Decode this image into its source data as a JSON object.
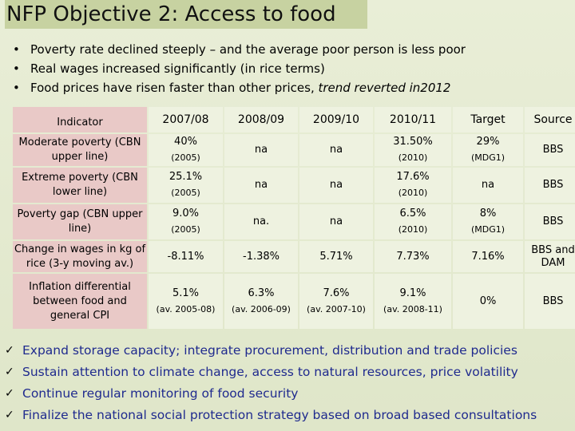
{
  "title": "NFP Objective 2: Access to food",
  "bullets": [
    {
      "text": "Poverty rate declined steeply – and the average poor person is less poor"
    },
    {
      "text": "Real wages increased significantly (in rice terms)"
    },
    {
      "text": "Food prices have risen faster than other prices, ",
      "italic": "trend reverted in2012"
    }
  ],
  "table": {
    "headers": [
      "Indicator",
      "2007/08",
      "2008/09",
      "2009/10",
      "2010/11",
      "Target",
      "Source"
    ],
    "rows": [
      {
        "indicator": "Moderate poverty (CBN upper line)",
        "cells": [
          {
            "main": "40%",
            "sub": "(2005)"
          },
          {
            "main": "na",
            "sub": ""
          },
          {
            "main": "na",
            "sub": ""
          },
          {
            "main": "31.50%",
            "sub": "(2010)"
          },
          {
            "main": "29%",
            "sub": "(MDG1)"
          },
          {
            "main": "BBS",
            "sub": ""
          }
        ]
      },
      {
        "indicator": "Extreme poverty (CBN lower line)",
        "cells": [
          {
            "main": "25.1%",
            "sub": "(2005)"
          },
          {
            "main": "na",
            "sub": ""
          },
          {
            "main": "na",
            "sub": ""
          },
          {
            "main": "17.6%",
            "sub": "(2010)"
          },
          {
            "main": "na",
            "sub": ""
          },
          {
            "main": "BBS",
            "sub": ""
          }
        ]
      },
      {
        "indicator": "Poverty gap (CBN upper line)",
        "cells": [
          {
            "main": "9.0%",
            "sub": "(2005)"
          },
          {
            "main": "na.",
            "sub": ""
          },
          {
            "main": "na",
            "sub": ""
          },
          {
            "main": "6.5%",
            "sub": "(2010)"
          },
          {
            "main": "8%",
            "sub": "(MDG1)"
          },
          {
            "main": "BBS",
            "sub": ""
          }
        ]
      },
      {
        "indicator": "Change in wages in kg of rice (3-y moving av.)",
        "cells": [
          {
            "main": "-8.11%",
            "sub": ""
          },
          {
            "main": "-1.38%",
            "sub": ""
          },
          {
            "main": "5.71%",
            "sub": ""
          },
          {
            "main": "7.73%",
            "sub": ""
          },
          {
            "main": "7.16%",
            "sub": ""
          },
          {
            "main": "BBS and DAM",
            "sub": ""
          }
        ]
      },
      {
        "indicator": "Inflation differential between food and general CPI",
        "cells": [
          {
            "main": "5.1%",
            "sub": "(av. 2005-08)"
          },
          {
            "main": "6.3%",
            "sub": "(av. 2006-09)"
          },
          {
            "main": "7.6%",
            "sub": "(av. 2007-10)"
          },
          {
            "main": "9.1%",
            "sub": "(av. 2008-11)"
          },
          {
            "main": "0%",
            "sub": ""
          },
          {
            "main": "BBS",
            "sub": ""
          }
        ]
      }
    ]
  },
  "checks": [
    "Expand storage capacity; integrate procurement, distribution and trade policies",
    "Sustain attention to climate change, access to natural resources, price volatility",
    "Continue regular monitoring of food security",
    "Finalize the national social protection strategy based on broad based consultations"
  ],
  "icons": {
    "bullet": "•",
    "check": "✓"
  }
}
